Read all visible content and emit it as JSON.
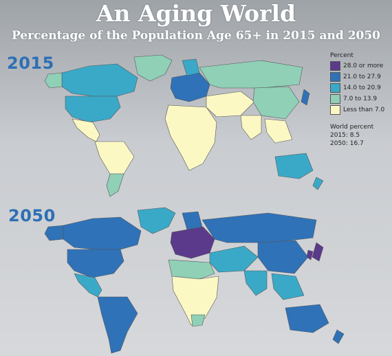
{
  "header": {
    "title": "An Aging World",
    "subtitle": "Percentage of the Population Age 65+ in 2015 and 2050"
  },
  "maps": [
    {
      "year": "2015"
    },
    {
      "year": "2050"
    }
  ],
  "legend": {
    "title": "Percent",
    "items": [
      {
        "label": "28.0 or more",
        "color": "#5b3a8c"
      },
      {
        "label": "21.0 to 27.9",
        "color": "#2f72b8"
      },
      {
        "label": "14.0 to 20.9",
        "color": "#3aa9c8"
      },
      {
        "label": "7.0 to 13.9",
        "color": "#8fd0b7"
      },
      {
        "label": "Less than 7.0",
        "color": "#fbf8c4"
      }
    ],
    "world_title": "World percent",
    "world_2015": "2015: 8.5",
    "world_2050": "2050: 16.7"
  },
  "colors": {
    "ocean_background": "#c0c3c6",
    "year_label": "#2d6fb5",
    "country_border": "#555555"
  }
}
